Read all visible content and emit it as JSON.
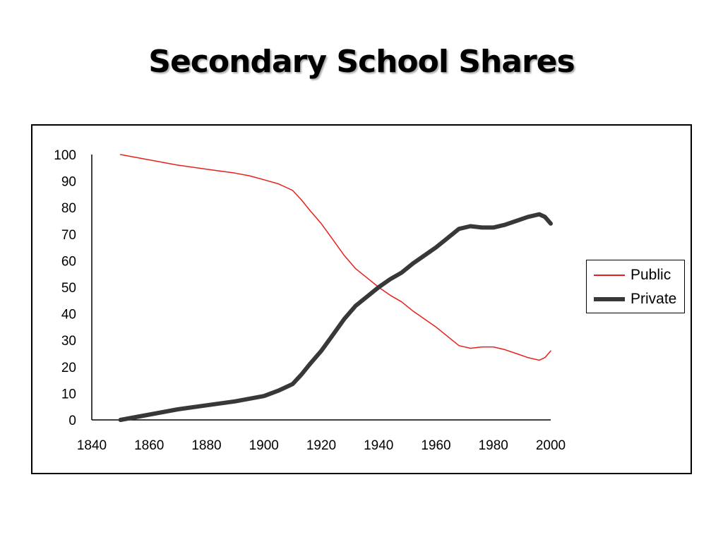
{
  "title": "Secondary School Shares",
  "colors": {
    "public": "#e8201b",
    "private": "#383838",
    "axis": "#000000"
  },
  "chart_data": {
    "type": "line",
    "title": "Secondary School Shares",
    "xlabel": "",
    "ylabel": "",
    "xlim": [
      1840,
      2000
    ],
    "ylim": [
      0,
      100
    ],
    "xticks": [
      1840,
      1860,
      1880,
      1900,
      1920,
      1940,
      1960,
      1980,
      2000
    ],
    "yticks": [
      0,
      10,
      20,
      30,
      40,
      50,
      60,
      70,
      80,
      90,
      100
    ],
    "grid": false,
    "legend_position": "right",
    "series": [
      {
        "name": "Public",
        "color": "#e8201b",
        "style": "thin",
        "x": [
          1850,
          1860,
          1870,
          1880,
          1890,
          1895,
          1900,
          1905,
          1908,
          1910,
          1913,
          1916,
          1920,
          1924,
          1928,
          1932,
          1936,
          1940,
          1944,
          1948,
          1952,
          1956,
          1960,
          1964,
          1968,
          1972,
          1976,
          1980,
          1984,
          1988,
          1992,
          1996,
          1998,
          2000
        ],
        "values": [
          100,
          98,
          96,
          94.5,
          93,
          92,
          90.5,
          89,
          87.5,
          86.5,
          83,
          79,
          74,
          68,
          62,
          57,
          53.5,
          50,
          47,
          44.5,
          41,
          38,
          35,
          31.5,
          28,
          27,
          27.5,
          27.5,
          26.5,
          25,
          23.5,
          22.5,
          23.5,
          26
        ]
      },
      {
        "name": "Private",
        "color": "#383838",
        "style": "thick",
        "x": [
          1850,
          1860,
          1870,
          1880,
          1890,
          1895,
          1900,
          1905,
          1908,
          1910,
          1913,
          1916,
          1920,
          1924,
          1928,
          1932,
          1936,
          1940,
          1944,
          1948,
          1952,
          1956,
          1960,
          1964,
          1968,
          1972,
          1976,
          1980,
          1984,
          1988,
          1992,
          1996,
          1998,
          2000
        ],
        "values": [
          0,
          2,
          4,
          5.5,
          7,
          8,
          9,
          11,
          12.5,
          13.5,
          17,
          21,
          26,
          32,
          38,
          43,
          46.5,
          50,
          53,
          55.5,
          59,
          62,
          65,
          68.5,
          72,
          73,
          72.5,
          72.5,
          73.5,
          75,
          76.5,
          77.5,
          76.5,
          74
        ]
      }
    ]
  }
}
